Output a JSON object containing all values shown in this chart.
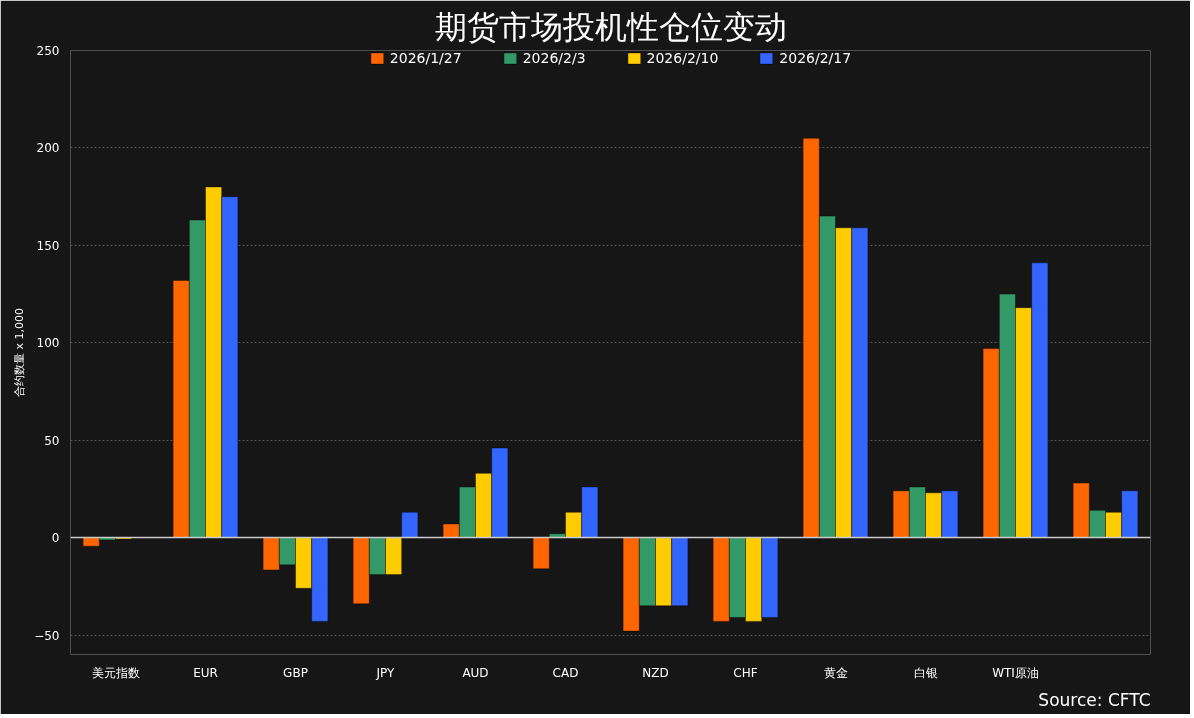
{
  "chart_data": {
    "type": "bar",
    "title": "期货市场投机性仓位变动",
    "ylabel": "合约数量 x 1,000",
    "categories": [
      "美元指数",
      "EUR",
      "GBP",
      "JPY",
      "AUD",
      "CAD",
      "NZD",
      "CHF",
      "黄金",
      "白银",
      "WTI原油",
      null
    ],
    "series": [
      {
        "name": "2026/1/27",
        "color": "#ff6600",
        "values": [
          -4.4,
          132,
          -16.6,
          -34,
          7,
          -16,
          -48,
          -43,
          205,
          24,
          97,
          28
        ]
      },
      {
        "name": "2026/2/3",
        "color": "#339966",
        "values": [
          -1.2,
          163,
          -14,
          -19,
          26,
          2,
          -35,
          -41,
          165,
          26,
          125,
          14
        ]
      },
      {
        "name": "2026/2/10",
        "color": "#ffcc00",
        "values": [
          -0.7,
          180,
          -26,
          -19,
          33,
          13,
          -35,
          -43,
          159,
          23,
          118,
          13
        ]
      },
      {
        "name": "2026/2/17",
        "color": "#3366ff",
        "values": [
          null,
          175,
          -43,
          13,
          46,
          26,
          -35,
          -41,
          159,
          24,
          141,
          24
        ]
      }
    ],
    "ylim": [
      -60,
      250
    ],
    "yticks": [
      -50,
      0,
      50,
      100,
      150,
      200,
      250
    ],
    "grid": "y",
    "legend": "top",
    "annotations": [
      "Source: CFTC"
    ]
  }
}
